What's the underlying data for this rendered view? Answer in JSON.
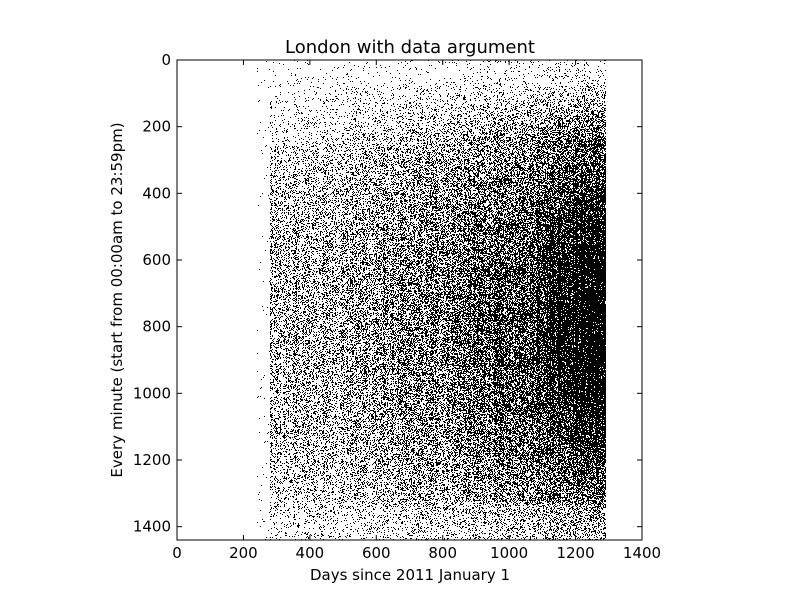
{
  "chart_data": {
    "type": "heatmap",
    "title": "London with data argument",
    "xlabel": "Days since 2011 January 1",
    "ylabel": "Every minute (start from 00:00am to 23:59pm)",
    "xlim": [
      0,
      1400
    ],
    "ylim": [
      1440,
      0
    ],
    "y_inverted": true,
    "xticks": [
      0,
      200,
      400,
      600,
      800,
      1000,
      1200,
      1400
    ],
    "yticks": [
      0,
      200,
      400,
      600,
      800,
      1000,
      1200,
      1400
    ],
    "colormap": "binary",
    "data_extent_days": [
      280,
      1290
    ],
    "sparse_start_days": [
      240,
      280
    ],
    "colors": {
      "mark": "#000000",
      "background": "#ffffff"
    },
    "grid": false,
    "legend": "none"
  }
}
